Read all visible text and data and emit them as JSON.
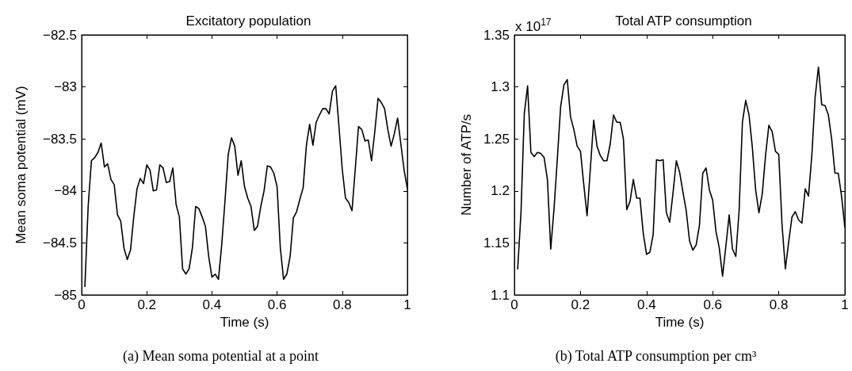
{
  "chart_data": [
    {
      "type": "line",
      "title": "Excitatory population",
      "xlabel": "Time (s)",
      "ylabel": "Mean soma potential (mV)",
      "x": [
        0.01,
        0.02,
        0.03,
        0.04,
        0.05,
        0.06,
        0.07,
        0.08,
        0.09,
        0.1,
        0.11,
        0.12,
        0.13,
        0.14,
        0.15,
        0.16,
        0.17,
        0.18,
        0.19,
        0.2,
        0.21,
        0.22,
        0.23,
        0.24,
        0.25,
        0.26,
        0.27,
        0.28,
        0.29,
        0.3,
        0.31,
        0.32,
        0.33,
        0.34,
        0.35,
        0.36,
        0.37,
        0.38,
        0.39,
        0.4,
        0.41,
        0.42,
        0.43,
        0.44,
        0.45,
        0.46,
        0.47,
        0.48,
        0.49,
        0.5,
        0.51,
        0.52,
        0.53,
        0.54,
        0.55,
        0.56,
        0.57,
        0.58,
        0.59,
        0.6,
        0.61,
        0.62,
        0.63,
        0.64,
        0.65,
        0.66,
        0.67,
        0.68,
        0.69,
        0.7,
        0.71,
        0.72,
        0.73,
        0.74,
        0.75,
        0.76,
        0.77,
        0.78,
        0.79,
        0.8,
        0.81,
        0.82,
        0.83,
        0.84,
        0.85,
        0.86,
        0.87,
        0.88,
        0.89,
        0.9,
        0.91,
        0.92,
        0.93,
        0.94,
        0.95,
        0.96,
        0.97,
        0.98,
        0.99,
        1
      ],
      "series": [
        {
          "color": "#000000",
          "values": [
            -84.92,
            -84.15,
            -83.71,
            -83.68,
            -83.63,
            -83.54,
            -83.77,
            -83.74,
            -83.89,
            -83.94,
            -84.23,
            -84.29,
            -84.55,
            -84.66,
            -84.57,
            -84.25,
            -83.98,
            -83.88,
            -83.93,
            -83.75,
            -83.8,
            -84.0,
            -83.99,
            -83.75,
            -83.78,
            -83.92,
            -83.91,
            -83.78,
            -84.13,
            -84.25,
            -84.75,
            -84.8,
            -84.75,
            -84.55,
            -84.15,
            -84.17,
            -84.25,
            -84.34,
            -84.63,
            -84.83,
            -84.8,
            -84.85,
            -84.52,
            -84.1,
            -83.65,
            -83.49,
            -83.57,
            -83.85,
            -83.71,
            -83.96,
            -84.07,
            -84.15,
            -84.38,
            -84.34,
            -84.15,
            -84.0,
            -83.76,
            -83.77,
            -83.83,
            -83.96,
            -84.55,
            -84.85,
            -84.8,
            -84.63,
            -84.26,
            -84.2,
            -84.08,
            -83.97,
            -83.56,
            -83.36,
            -83.56,
            -83.34,
            -83.27,
            -83.21,
            -83.21,
            -83.26,
            -83.04,
            -82.99,
            -83.38,
            -83.79,
            -84.07,
            -84.11,
            -84.19,
            -83.79,
            -83.38,
            -83.41,
            -83.52,
            -83.51,
            -83.71,
            -83.43,
            -83.11,
            -83.15,
            -83.21,
            -83.41,
            -83.57,
            -83.45,
            -83.3,
            -83.55,
            -83.8,
            -83.98
          ]
        }
      ],
      "xlim": [
        0,
        1
      ],
      "xticks": [
        0,
        0.2,
        0.4,
        0.6,
        0.8,
        1
      ],
      "ylim": [
        -85,
        -82.5
      ],
      "yticks": [
        {
          "value": -85,
          "label": "−85"
        },
        {
          "value": -84.5,
          "label": "−84.5"
        },
        {
          "value": -84,
          "label": "−84"
        },
        {
          "value": -83.5,
          "label": "−83.5"
        },
        {
          "value": -83,
          "label": "−83"
        },
        {
          "value": -82.5,
          "label": "−82.5"
        }
      ],
      "annotations": [
        "(a) Mean soma potential at a point"
      ]
    },
    {
      "type": "line",
      "title": "Total ATP consumption",
      "xlabel": "Time (s)",
      "ylabel": "Number of ATP/s",
      "x": [
        0.01,
        0.02,
        0.03,
        0.04,
        0.05,
        0.06,
        0.07,
        0.08,
        0.09,
        0.1,
        0.11,
        0.12,
        0.13,
        0.14,
        0.15,
        0.16,
        0.17,
        0.18,
        0.19,
        0.2,
        0.21,
        0.22,
        0.23,
        0.24,
        0.25,
        0.26,
        0.27,
        0.28,
        0.29,
        0.3,
        0.31,
        0.32,
        0.33,
        0.34,
        0.35,
        0.36,
        0.37,
        0.38,
        0.39,
        0.4,
        0.41,
        0.42,
        0.43,
        0.44,
        0.45,
        0.46,
        0.47,
        0.48,
        0.49,
        0.5,
        0.51,
        0.52,
        0.53,
        0.54,
        0.55,
        0.56,
        0.57,
        0.58,
        0.59,
        0.6,
        0.61,
        0.62,
        0.63,
        0.64,
        0.65,
        0.66,
        0.67,
        0.68,
        0.69,
        0.7,
        0.71,
        0.72,
        0.73,
        0.74,
        0.75,
        0.76,
        0.77,
        0.78,
        0.79,
        0.8,
        0.81,
        0.82,
        0.83,
        0.84,
        0.85,
        0.86,
        0.87,
        0.88,
        0.89,
        0.9,
        0.91,
        0.92,
        0.93,
        0.94,
        0.95,
        0.96,
        0.97,
        0.98,
        0.99,
        1
      ],
      "series": [
        {
          "color": "#000000",
          "values": [
            1.125,
            1.179,
            1.274,
            1.301,
            1.237,
            1.233,
            1.237,
            1.236,
            1.232,
            1.211,
            1.144,
            1.183,
            1.231,
            1.281,
            1.302,
            1.307,
            1.271,
            1.259,
            1.243,
            1.238,
            1.206,
            1.176,
            1.222,
            1.268,
            1.243,
            1.234,
            1.229,
            1.229,
            1.245,
            1.273,
            1.266,
            1.266,
            1.25,
            1.182,
            1.19,
            1.211,
            1.193,
            1.193,
            1.159,
            1.139,
            1.141,
            1.158,
            1.23,
            1.229,
            1.23,
            1.179,
            1.17,
            1.198,
            1.229,
            1.218,
            1.199,
            1.181,
            1.152,
            1.143,
            1.148,
            1.167,
            1.217,
            1.222,
            1.201,
            1.191,
            1.161,
            1.145,
            1.118,
            1.147,
            1.177,
            1.144,
            1.137,
            1.181,
            1.266,
            1.287,
            1.273,
            1.242,
            1.201,
            1.179,
            1.197,
            1.234,
            1.263,
            1.257,
            1.238,
            1.235,
            1.167,
            1.125,
            1.151,
            1.175,
            1.18,
            1.172,
            1.169,
            1.202,
            1.195,
            1.234,
            1.29,
            1.319,
            1.283,
            1.282,
            1.273,
            1.25,
            1.217,
            1.217,
            1.195,
            1.165
          ]
        }
      ],
      "xlim": [
        0,
        1
      ],
      "xticks": [
        0,
        0.2,
        0.4,
        0.6,
        0.8,
        1
      ],
      "ylim": [
        1.1,
        1.35
      ],
      "yticks": [
        1.1,
        1.15,
        1.2,
        1.25,
        1.3,
        1.35
      ],
      "annotations": [
        "x 10$^{17}$",
        "(b) Total ATP consumption per cm³"
      ]
    }
  ]
}
